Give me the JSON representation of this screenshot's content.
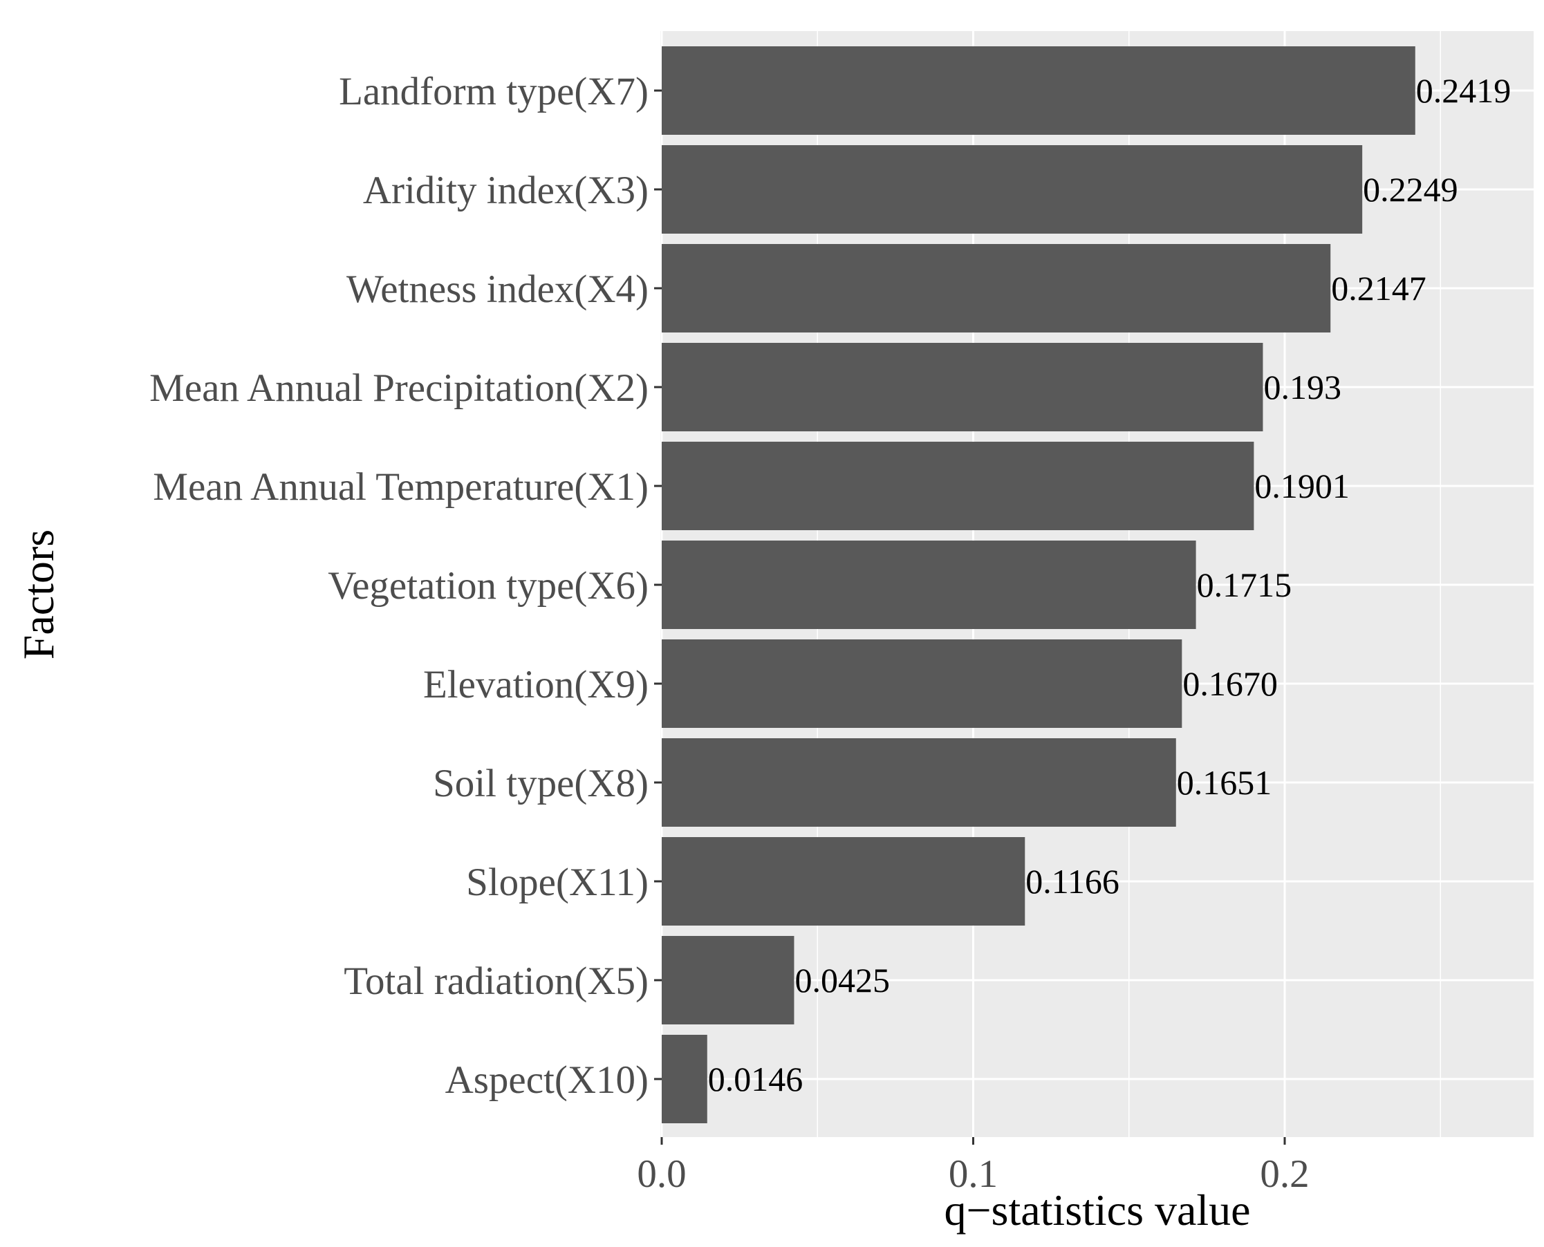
{
  "chart_data": {
    "type": "bar",
    "orientation": "horizontal",
    "title": "",
    "xlabel": "q−statistics value",
    "ylabel": "Factors",
    "xlim": [
      0,
      0.28
    ],
    "xticks": [
      0.0,
      0.1,
      0.2
    ],
    "xtick_labels": [
      "0.0",
      "0.1",
      "0.2"
    ],
    "grid": true,
    "categories": [
      "Landform type(X7)",
      "Aridity index(X3)",
      "Wetness index(X4)",
      "Mean Annual Precipitation(X2)",
      "Mean Annual Temperature(X1)",
      "Vegetation type(X6)",
      "Elevation(X9)",
      "Soil type(X8)",
      "Slope(X11)",
      "Total radiation(X5)",
      "Aspect(X10)"
    ],
    "values": [
      0.2419,
      0.2249,
      0.2147,
      0.193,
      0.1901,
      0.1715,
      0.167,
      0.1651,
      0.1166,
      0.0425,
      0.0146
    ],
    "value_labels": [
      "0.2419",
      "0.2249",
      "0.2147",
      "0.193",
      "0.1901",
      "0.1715",
      "0.1670",
      "0.1651",
      "0.1166",
      "0.0425",
      "0.0146"
    ]
  },
  "colors": {
    "bar": "#595959",
    "panel": "#ebebeb",
    "grid": "#ffffff",
    "tick_text": "#4d4d4d",
    "label_text": "#000000"
  }
}
